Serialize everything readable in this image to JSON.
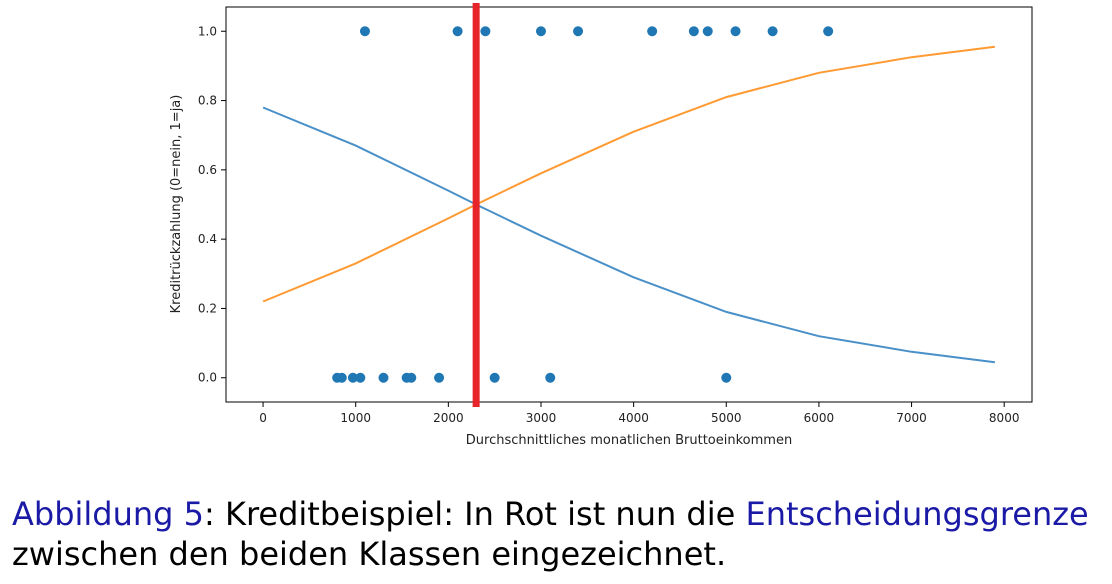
{
  "colors": {
    "blue": "#1f77b4",
    "curve_blue": "#4a90c8",
    "curve_orange": "#ff9a33",
    "boundary_red": "#e8242b",
    "caption_accent": "#1a1aa6"
  },
  "chart_data": {
    "type": "scatter",
    "xlabel": "Durchschnittliches monatlichen Bruttoeinkommen",
    "ylabel": "Kreditrückzahlung (0=nein, 1=ja)",
    "xlim": [
      -400,
      8300
    ],
    "ylim": [
      -0.07,
      1.07
    ],
    "x_ticks": [
      0,
      1000,
      2000,
      3000,
      4000,
      5000,
      6000,
      7000,
      8000
    ],
    "x_tick_labels": [
      "0",
      "1000",
      "2000",
      "3000",
      "4000",
      "5000",
      "6000",
      "7000",
      "8000"
    ],
    "y_ticks": [
      0.0,
      0.2,
      0.4,
      0.6,
      0.8,
      1.0
    ],
    "y_tick_labels": [
      "0.0",
      "0.2",
      "0.4",
      "0.6",
      "0.8",
      "1.0"
    ],
    "grid": false,
    "scatter_points": [
      {
        "x": 800,
        "y": 0
      },
      {
        "x": 850,
        "y": 0
      },
      {
        "x": 970,
        "y": 0
      },
      {
        "x": 1050,
        "y": 0
      },
      {
        "x": 1300,
        "y": 0
      },
      {
        "x": 1550,
        "y": 0
      },
      {
        "x": 1600,
        "y": 0
      },
      {
        "x": 1900,
        "y": 0
      },
      {
        "x": 2500,
        "y": 0
      },
      {
        "x": 3100,
        "y": 0
      },
      {
        "x": 5000,
        "y": 0
      },
      {
        "x": 1100,
        "y": 1
      },
      {
        "x": 2100,
        "y": 1
      },
      {
        "x": 2400,
        "y": 1
      },
      {
        "x": 3000,
        "y": 1
      },
      {
        "x": 3400,
        "y": 1
      },
      {
        "x": 4200,
        "y": 1
      },
      {
        "x": 4650,
        "y": 1
      },
      {
        "x": 4800,
        "y": 1
      },
      {
        "x": 5100,
        "y": 1
      },
      {
        "x": 5500,
        "y": 1
      },
      {
        "x": 6100,
        "y": 1
      }
    ],
    "series": [
      {
        "type": "line",
        "x": [
          0,
          1000,
          2000,
          2300,
          3000,
          4000,
          5000,
          6000,
          7000,
          7900
        ],
        "values": [
          0.78,
          0.67,
          0.54,
          0.5,
          0.41,
          0.29,
          0.19,
          0.12,
          0.075,
          0.045
        ]
      },
      {
        "type": "line",
        "x": [
          0,
          1000,
          2000,
          2300,
          3000,
          4000,
          5000,
          6000,
          7000,
          7900
        ],
        "values": [
          0.22,
          0.33,
          0.46,
          0.5,
          0.59,
          0.71,
          0.81,
          0.88,
          0.925,
          0.955
        ]
      }
    ],
    "vertical_line_x": 2300
  },
  "caption": {
    "prefix": "Abbildung 5",
    "sep": ": Kreditbeispiel: In Rot ist nun die ",
    "term": "Entscheidungsgrenze",
    "rest": " zwischen den beiden Klassen eingezeichnet."
  }
}
